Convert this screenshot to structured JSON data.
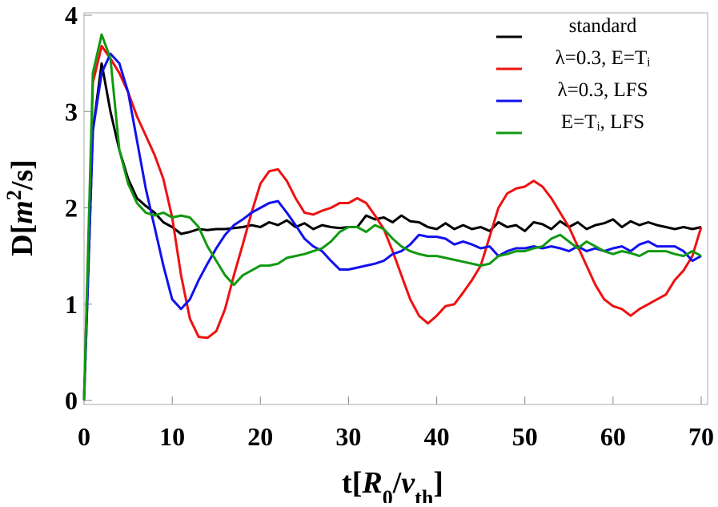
{
  "chart_data": {
    "type": "line",
    "xlabel": [
      {
        "text": "t["
      },
      {
        "text": "R",
        "italic": true
      },
      {
        "text": "0",
        "sub": true
      },
      {
        "text": "/"
      },
      {
        "text": "v",
        "italic": true
      },
      {
        "text": "th",
        "sub": true
      },
      {
        "text": "]"
      }
    ],
    "ylabel": [
      {
        "text": "D["
      },
      {
        "text": "m",
        "italic": true
      },
      {
        "text": "2",
        "sup": true
      },
      {
        "text": "/s]"
      }
    ],
    "x": [
      0,
      1,
      2,
      3,
      4,
      5,
      6,
      7,
      8,
      9,
      10,
      11,
      12,
      13,
      14,
      15,
      16,
      17,
      18,
      19,
      20,
      21,
      22,
      23,
      24,
      25,
      26,
      27,
      28,
      29,
      30,
      31,
      32,
      33,
      34,
      35,
      36,
      37,
      38,
      39,
      40,
      41,
      42,
      43,
      44,
      45,
      46,
      47,
      48,
      49,
      50,
      51,
      52,
      53,
      54,
      55,
      56,
      57,
      58,
      59,
      60,
      61,
      62,
      63,
      64,
      65,
      66,
      67,
      68,
      69,
      70
    ],
    "series": [
      {
        "name": "standard",
        "color": "#000000",
        "values": [
          0,
          2.8,
          3.5,
          3.0,
          2.6,
          2.3,
          2.1,
          2.02,
          1.95,
          1.85,
          1.8,
          1.73,
          1.75,
          1.78,
          1.77,
          1.78,
          1.78,
          1.79,
          1.8,
          1.82,
          1.8,
          1.85,
          1.82,
          1.87,
          1.8,
          1.84,
          1.78,
          1.82,
          1.8,
          1.79,
          1.8,
          1.8,
          1.92,
          1.88,
          1.9,
          1.85,
          1.92,
          1.86,
          1.85,
          1.8,
          1.78,
          1.84,
          1.78,
          1.82,
          1.78,
          1.8,
          1.76,
          1.85,
          1.8,
          1.82,
          1.76,
          1.85,
          1.83,
          1.78,
          1.86,
          1.8,
          1.85,
          1.78,
          1.82,
          1.84,
          1.88,
          1.8,
          1.86,
          1.82,
          1.85,
          1.82,
          1.8,
          1.78,
          1.8,
          1.78,
          1.8
        ]
      },
      {
        "name": "λ=0.3, E=Tᵢ",
        "color": "#ee1111",
        "values": [
          0,
          3.3,
          3.68,
          3.55,
          3.4,
          3.2,
          2.95,
          2.75,
          2.55,
          2.3,
          1.9,
          1.3,
          0.85,
          0.66,
          0.65,
          0.72,
          0.95,
          1.3,
          1.62,
          1.95,
          2.25,
          2.38,
          2.4,
          2.28,
          2.1,
          1.95,
          1.93,
          1.97,
          2.0,
          2.05,
          2.05,
          2.1,
          2.05,
          1.92,
          1.78,
          1.55,
          1.3,
          1.05,
          0.88,
          0.8,
          0.88,
          0.98,
          1.0,
          1.12,
          1.25,
          1.4,
          1.7,
          2.0,
          2.15,
          2.2,
          2.22,
          2.28,
          2.22,
          2.1,
          1.95,
          1.8,
          1.6,
          1.4,
          1.2,
          1.05,
          0.98,
          0.95,
          0.88,
          0.95,
          1.0,
          1.05,
          1.1,
          1.25,
          1.35,
          1.5,
          1.8
        ]
      },
      {
        "name": "λ=0.3, LFS",
        "color": "#1111ee",
        "values": [
          0,
          2.8,
          3.4,
          3.6,
          3.5,
          3.2,
          2.7,
          2.2,
          1.8,
          1.4,
          1.05,
          0.95,
          1.05,
          1.25,
          1.42,
          1.58,
          1.72,
          1.82,
          1.88,
          1.95,
          2.0,
          2.05,
          2.07,
          1.95,
          1.82,
          1.68,
          1.6,
          1.55,
          1.45,
          1.36,
          1.36,
          1.38,
          1.4,
          1.42,
          1.45,
          1.52,
          1.55,
          1.62,
          1.72,
          1.7,
          1.7,
          1.68,
          1.62,
          1.65,
          1.62,
          1.58,
          1.6,
          1.5,
          1.55,
          1.58,
          1.58,
          1.6,
          1.58,
          1.6,
          1.58,
          1.55,
          1.6,
          1.55,
          1.58,
          1.55,
          1.58,
          1.6,
          1.55,
          1.62,
          1.65,
          1.6,
          1.6,
          1.6,
          1.55,
          1.45,
          1.5
        ]
      },
      {
        "name": "E=Tᵢ, LFS",
        "color": "#119911",
        "values": [
          0,
          3.4,
          3.8,
          3.55,
          2.6,
          2.25,
          2.05,
          1.95,
          1.92,
          1.95,
          1.9,
          1.92,
          1.9,
          1.8,
          1.6,
          1.45,
          1.3,
          1.2,
          1.3,
          1.35,
          1.4,
          1.4,
          1.42,
          1.48,
          1.5,
          1.52,
          1.55,
          1.58,
          1.65,
          1.75,
          1.8,
          1.8,
          1.75,
          1.82,
          1.78,
          1.68,
          1.6,
          1.55,
          1.52,
          1.5,
          1.5,
          1.48,
          1.46,
          1.44,
          1.42,
          1.4,
          1.42,
          1.5,
          1.52,
          1.55,
          1.55,
          1.58,
          1.6,
          1.68,
          1.72,
          1.65,
          1.58,
          1.65,
          1.6,
          1.55,
          1.52,
          1.55,
          1.53,
          1.5,
          1.55,
          1.55,
          1.55,
          1.52,
          1.5,
          1.55,
          1.5
        ]
      }
    ],
    "xlim": [
      0,
      70
    ],
    "xticks": [
      0,
      10,
      20,
      30,
      40,
      50,
      60,
      70
    ],
    "ylim": [
      0,
      4
    ],
    "yticks": [
      0,
      1,
      2,
      3,
      4
    ],
    "legend": "upper right"
  }
}
